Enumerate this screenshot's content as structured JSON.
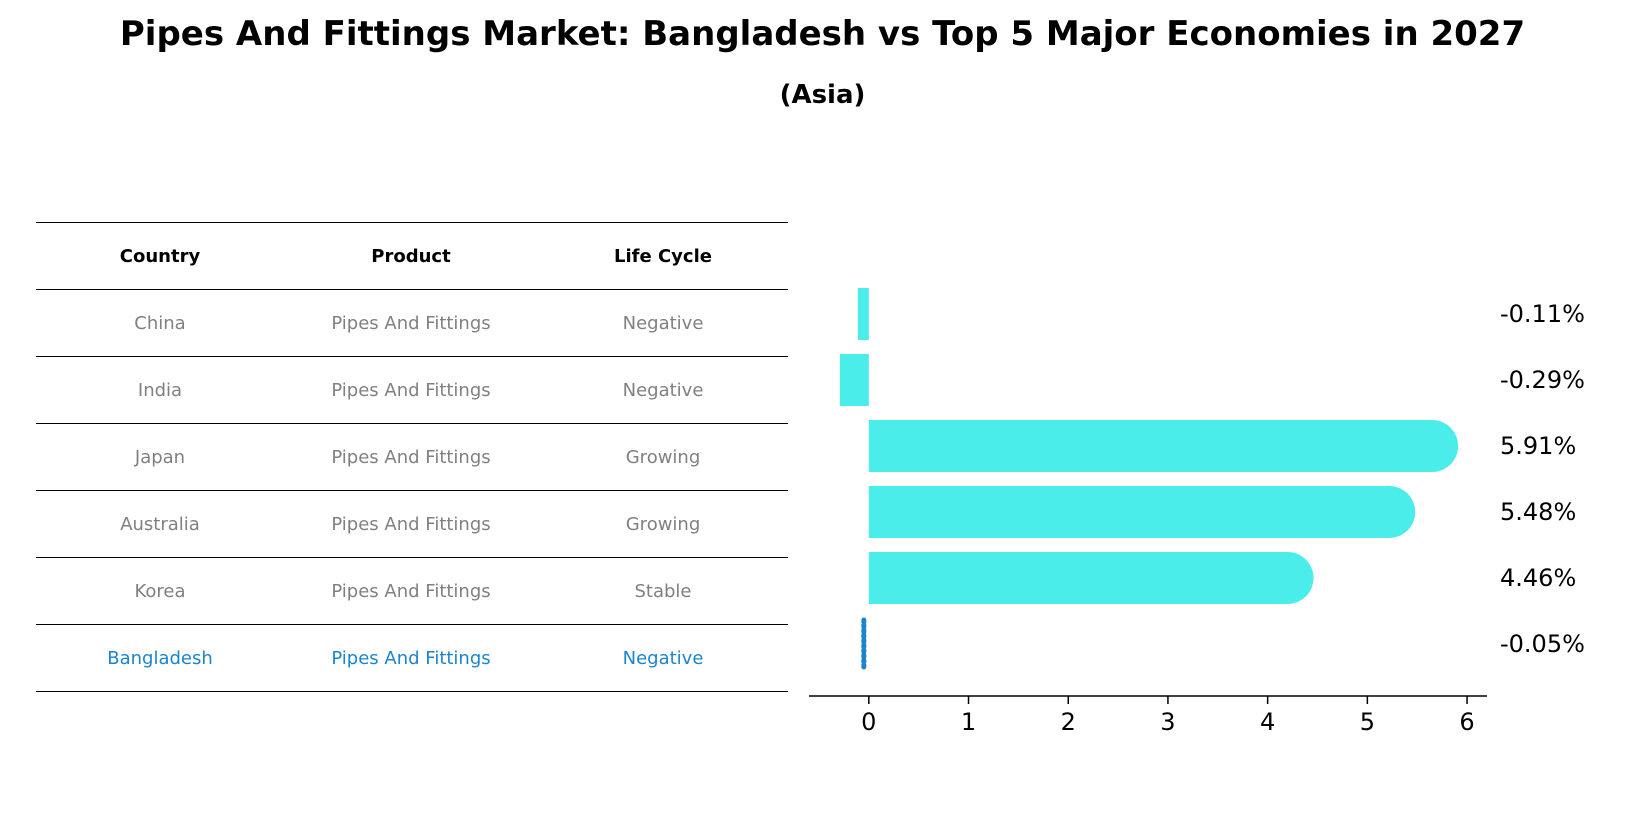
{
  "title": "Pipes And Fittings Market: Bangladesh vs Top 5 Major Economies in 2027",
  "subtitle": "(Asia)",
  "table": {
    "headers": [
      "Country",
      "Product",
      "Life Cycle"
    ],
    "rows": [
      {
        "country": "China",
        "product": "Pipes And Fittings",
        "life_cycle": "Negative"
      },
      {
        "country": "India",
        "product": "Pipes And Fittings",
        "life_cycle": "Negative"
      },
      {
        "country": "Japan",
        "product": "Pipes And Fittings",
        "life_cycle": "Growing"
      },
      {
        "country": "Australia",
        "product": "Pipes And Fittings",
        "life_cycle": "Growing"
      },
      {
        "country": "Korea",
        "product": "Pipes And Fittings",
        "life_cycle": "Stable"
      },
      {
        "country": "Bangladesh",
        "product": "Pipes And Fittings",
        "life_cycle": "Negative"
      }
    ]
  },
  "colors": {
    "bar": "#4BEDEA",
    "highlight": "#1A85CC",
    "muted_text": "#808080"
  },
  "chart_data": {
    "type": "bar",
    "orientation": "horizontal",
    "categories": [
      "China",
      "India",
      "Japan",
      "Australia",
      "Korea",
      "Bangladesh"
    ],
    "values": [
      -0.11,
      -0.29,
      5.91,
      5.48,
      4.46,
      -0.05
    ],
    "value_labels": [
      "-0.11%",
      "-0.29%",
      "5.91%",
      "5.48%",
      "4.46%",
      "-0.05%"
    ],
    "xlim": [
      -0.6,
      6.2
    ],
    "xticks": [
      0,
      1,
      2,
      3,
      4,
      5,
      6
    ],
    "xlabel": "",
    "ylabel": "",
    "grid": false
  }
}
